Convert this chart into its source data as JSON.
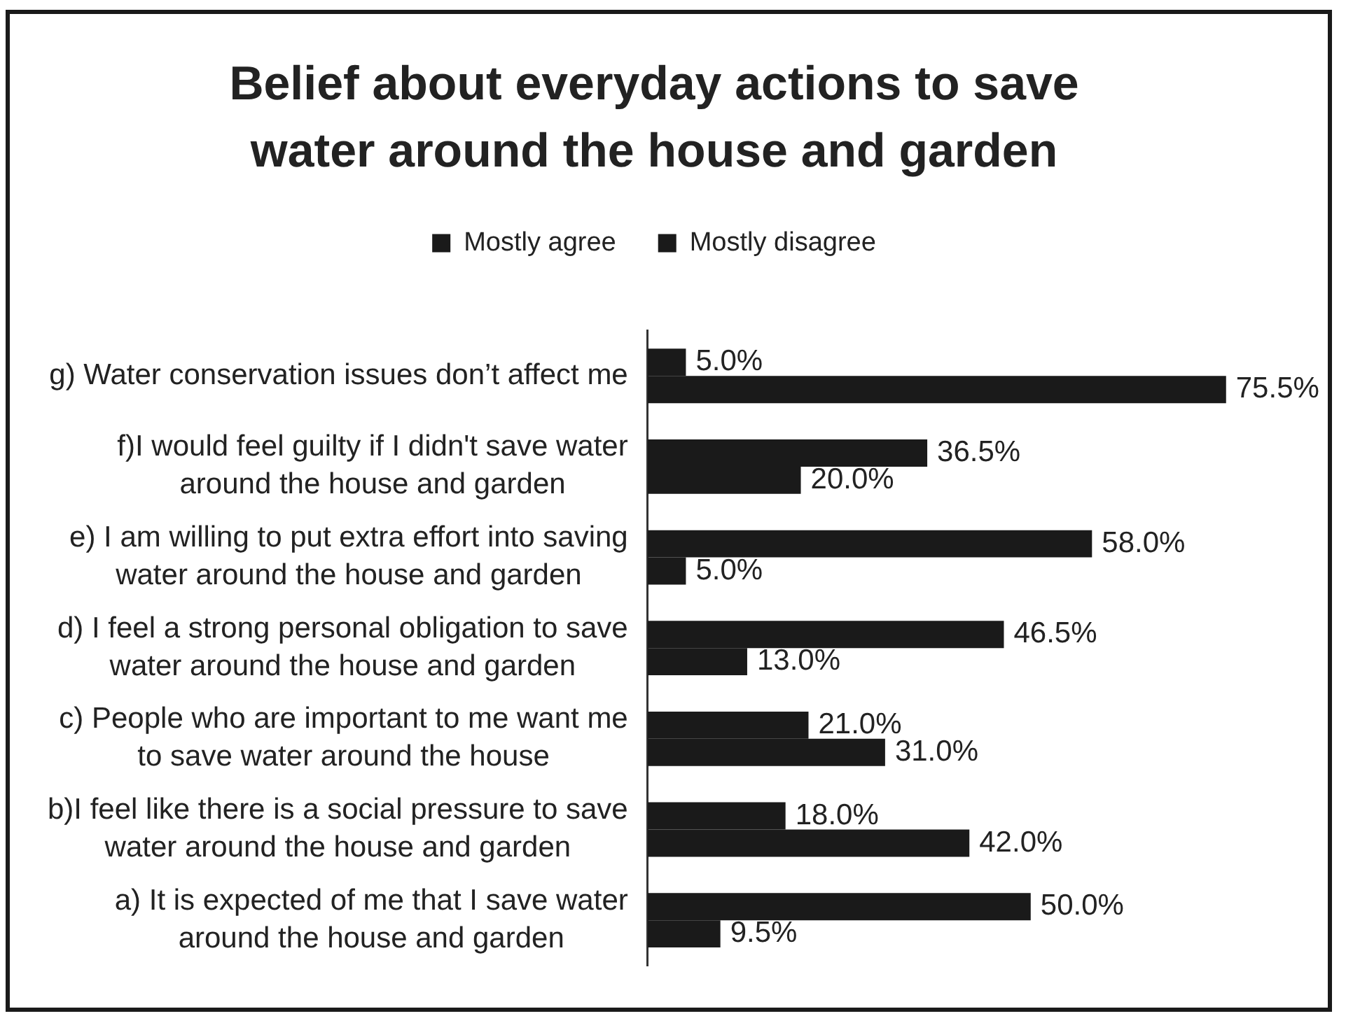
{
  "chart_data": {
    "type": "bar",
    "orientation": "horizontal",
    "title": "Belief about everyday actions to save water around the house and garden",
    "categories": [
      "g) Water conservation issues don’t affect me",
      "f)I would feel guilty if I didn't save water around the house and garden",
      "e) I am willing to put extra effort into saving water around the house and garden",
      "d) I feel a strong personal obligation to save water around the house and garden",
      "c) People who are important to me want me to save water around the house",
      "b)I feel like there is a social pressure to save water around the house and garden",
      "a) It is expected of me that I save water around the house and garden"
    ],
    "series": [
      {
        "name": "Mostly agree",
        "color": "#1a1a1a",
        "values": [
          5.0,
          36.5,
          58.0,
          46.5,
          21.0,
          18.0,
          50.0
        ],
        "value_labels": [
          "5.0%",
          "36.5%",
          "58.0%",
          "46.5%",
          "21.0%",
          "18.0%",
          "50.0%"
        ]
      },
      {
        "name": "Mostly disagree",
        "color": "#1a1a1a",
        "values": [
          75.5,
          20.0,
          5.0,
          13.0,
          31.0,
          42.0,
          9.5
        ],
        "value_labels": [
          "75.5%",
          "20.0%",
          "5.0%",
          "13.0%",
          "31.0%",
          "42.0%",
          "9.5%"
        ]
      }
    ],
    "legend": "top",
    "tick_labels": "y"
  }
}
